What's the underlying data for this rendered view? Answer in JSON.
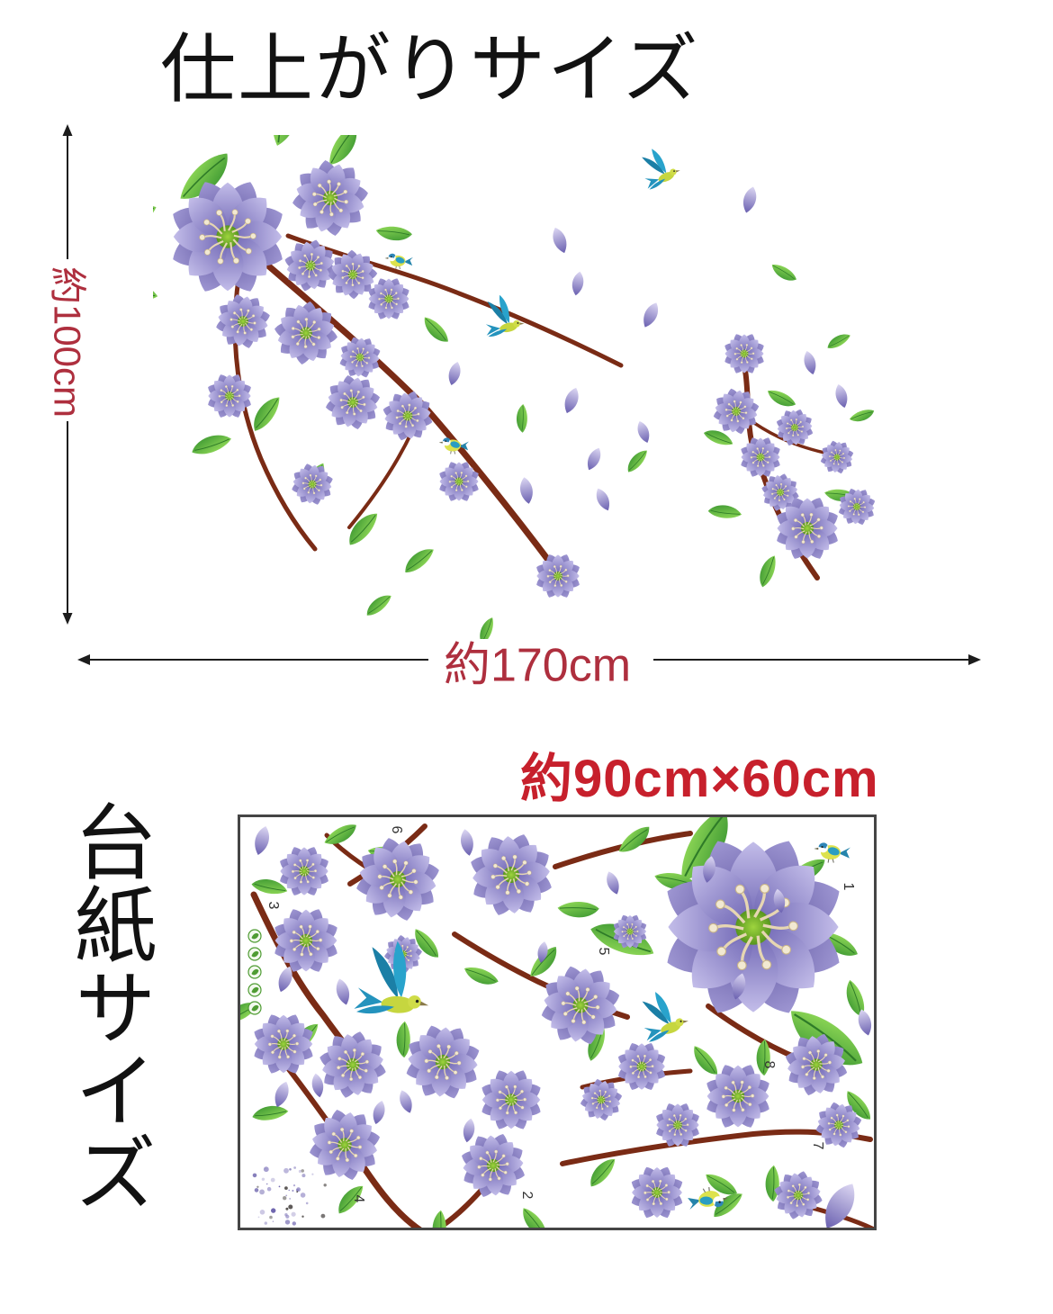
{
  "page": {
    "title": "仕上がりサイズ"
  },
  "finished_size": {
    "height_label": "約100cm",
    "width_label": "約170cm"
  },
  "backing_sheet": {
    "size_label": "約90cm×60cm",
    "side_label": "台紙サイズ",
    "sheet_markers": [
      "6",
      "3",
      "5",
      "1",
      "8",
      "2",
      "4",
      "7"
    ]
  },
  "colors": {
    "dimension_red": "#ae2f3e",
    "sheet_size_red": "#c7202c",
    "text_black": "#121212",
    "arrow_black": "#1c1c1c",
    "sheet_border_gray": "#454545",
    "flower_purple": "#8a82c6",
    "flower_purple_deep": "#5f57a0",
    "flower_center_green": "#6fae2a",
    "stamen_cream": "#f2e9d2",
    "leaf_green": "#53b13e",
    "branch_brown": "#7a2b15",
    "bird_teal": "#2a9dc2",
    "bird_yellow": "#d3de46",
    "badge_green": "#4f9c33"
  },
  "icons": {
    "height_arrow": "double-headed-vertical-arrow-icon",
    "width_arrow": "double-headed-horizontal-arrow-icon",
    "flower": "purple-flower-icon",
    "leaf": "leaf-icon",
    "petal": "falling-petal-icon",
    "branch": "branch-icon",
    "bird_flying": "flying-bird-icon",
    "bird_perched": "perched-bird-icon",
    "brand_badges": "leaf-badge-icon"
  }
}
